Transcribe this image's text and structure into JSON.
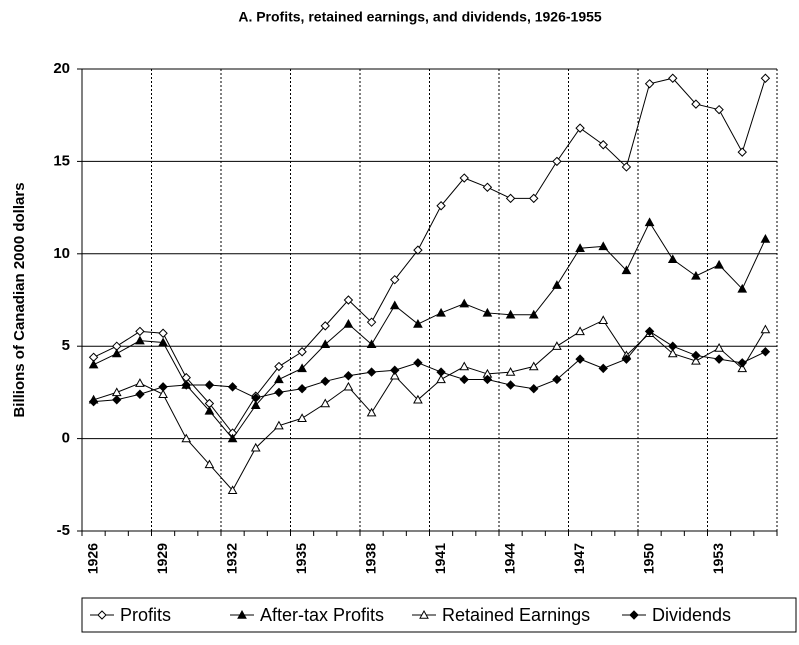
{
  "chart_data": {
    "type": "line",
    "title": "A. Profits, retained earnings, and dividends, 1926-1955",
    "y_label": "Billions of Canadian 2000 dollars",
    "categories": [
      "1926",
      null,
      null,
      "1929",
      null,
      null,
      "1932",
      null,
      null,
      "1935",
      null,
      null,
      "1938",
      null,
      null,
      "1941",
      null,
      null,
      "1944",
      null,
      null,
      "1947",
      null,
      null,
      "1950",
      null,
      null,
      "1953",
      null,
      null
    ],
    "series": [
      {
        "name": "Profits",
        "color": "#000000",
        "marker": "open-diamond",
        "values": [
          4.4,
          5.0,
          5.8,
          5.7,
          3.3,
          1.9,
          0.3,
          2.3,
          3.9,
          4.7,
          6.1,
          7.5,
          6.3,
          8.6,
          10.2,
          12.6,
          14.1,
          13.6,
          13.0,
          13.0,
          15.0,
          16.8,
          15.9,
          14.7,
          19.2,
          19.5,
          18.1,
          17.8,
          15.5,
          19.5
        ]
      },
      {
        "name": "After-tax Profits",
        "color": "#000000",
        "marker": "filled-triangle",
        "values": [
          4.0,
          4.6,
          5.3,
          5.2,
          2.9,
          1.5,
          0.0,
          1.8,
          3.2,
          3.8,
          5.1,
          6.2,
          5.1,
          7.2,
          6.2,
          6.8,
          7.3,
          6.8,
          6.7,
          6.7,
          8.3,
          10.3,
          10.4,
          9.1,
          11.7,
          9.7,
          8.8,
          9.4,
          8.1,
          10.8
        ]
      },
      {
        "name": "Retained Earnings",
        "color": "#000000",
        "marker": "open-triangle",
        "values": [
          2.1,
          2.5,
          3.0,
          2.4,
          0.0,
          -1.4,
          -2.8,
          -0.5,
          0.7,
          1.1,
          1.9,
          2.8,
          1.4,
          3.4,
          2.1,
          3.2,
          3.9,
          3.5,
          3.6,
          3.9,
          5.0,
          5.8,
          6.4,
          4.5,
          5.7,
          4.6,
          4.2,
          4.9,
          3.8,
          5.9
        ]
      },
      {
        "name": "Dividends",
        "color": "#000000",
        "marker": "filled-diamond",
        "values": [
          2.0,
          2.1,
          2.4,
          2.8,
          2.9,
          2.9,
          2.8,
          2.2,
          2.5,
          2.7,
          3.1,
          3.4,
          3.6,
          3.7,
          4.1,
          3.6,
          3.2,
          3.2,
          2.9,
          2.7,
          3.2,
          4.3,
          3.8,
          4.3,
          5.8,
          5.0,
          4.5,
          4.3,
          4.1,
          4.7
        ]
      }
    ],
    "ylim": [
      -5,
      20
    ],
    "yticks": [
      -5,
      0,
      5,
      10,
      15,
      20
    ],
    "grid": true,
    "legend": "bottom"
  }
}
